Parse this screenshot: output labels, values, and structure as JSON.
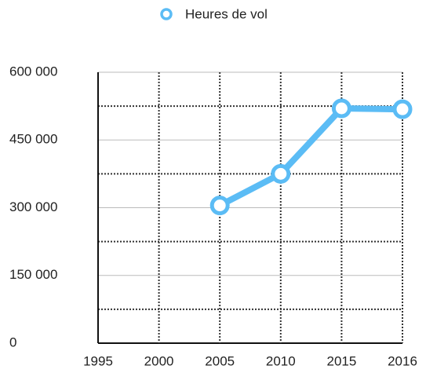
{
  "chart_data": {
    "type": "line",
    "categories": [
      "1995",
      "2000",
      "2005",
      "2010",
      "2015",
      "2016"
    ],
    "series": [
      {
        "name": "Heures de vol",
        "color": "#5bbcf5",
        "values": [
          null,
          null,
          305000,
          375000,
          520000,
          518000
        ]
      }
    ],
    "ylim": [
      0,
      600000
    ],
    "yticks": [
      {
        "value": 0,
        "label": "0"
      },
      {
        "value": 150000,
        "label": "150 000"
      },
      {
        "value": 300000,
        "label": "300 000"
      },
      {
        "value": 450000,
        "label": "450 000"
      },
      {
        "value": 600000,
        "label": "600 000"
      }
    ],
    "minor_yticks": [
      75000,
      225000,
      375000,
      525000
    ],
    "grid": true,
    "legend": "top"
  }
}
